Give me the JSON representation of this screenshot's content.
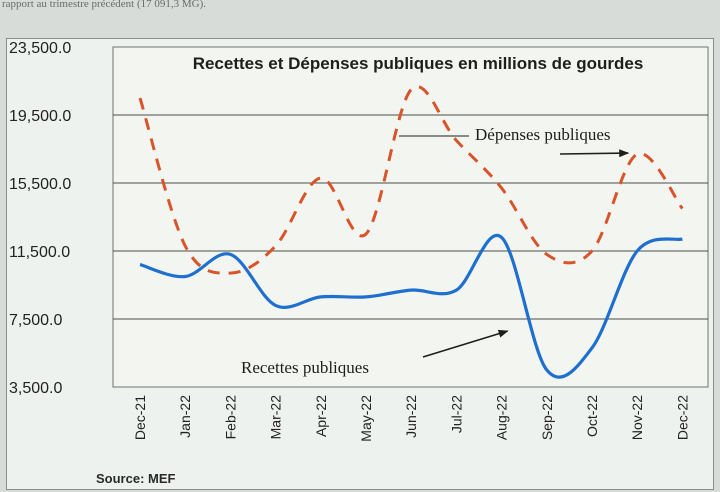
{
  "page": {
    "top_clipped_text": "rapport au trimestre précédent (17 091,3 MG)."
  },
  "chart_data": {
    "type": "line",
    "title": "Recettes et Dépenses publiques en millions de gourdes",
    "categories": [
      "Dec-21",
      "Jan-22",
      "Feb-22",
      "Mar-22",
      "Apr-22",
      "May-22",
      "Jun-22",
      "Jul-22",
      "Aug-22",
      "Sep-22",
      "Oct-22",
      "Nov-22",
      "Dec-22"
    ],
    "ylim": [
      3500,
      23500
    ],
    "yticks": [
      "3,500.0",
      "7,500.0",
      "11,500.0",
      "15,500.0",
      "19,500.0",
      "23,500.0"
    ],
    "ytick_values": [
      3500,
      7500,
      11500,
      15500,
      19500,
      23500
    ],
    "grid": "horizontal",
    "series": [
      {
        "name": "Dépenses publiques",
        "style": "dashed",
        "color": "#d9542a",
        "values": [
          20500,
          11800,
          10200,
          11800,
          15800,
          12500,
          21000,
          18000,
          15200,
          11300,
          11500,
          17200,
          14000
        ]
      },
      {
        "name": "Recettes publiques",
        "style": "solid",
        "color": "#1e6fd0",
        "values": [
          10700,
          10000,
          11300,
          8300,
          8800,
          8800,
          9200,
          9200,
          12300,
          4500,
          5800,
          11500,
          12200
        ]
      }
    ],
    "annotations": [
      {
        "text": "Dépenses publiques",
        "series": 0,
        "points_to": "Nov-22"
      },
      {
        "text": "Recettes publiques",
        "series": 1,
        "points_to": "Aug-22"
      }
    ],
    "source": "Source: MEF"
  }
}
